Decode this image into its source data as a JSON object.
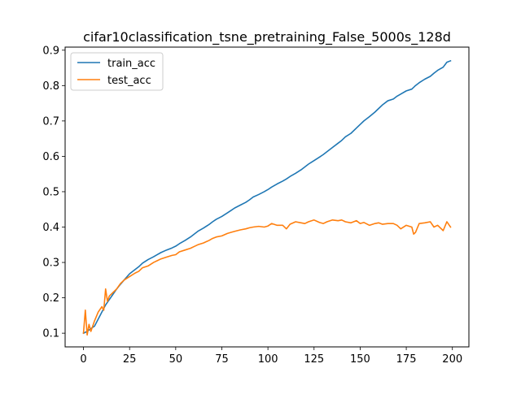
{
  "chart_data": {
    "type": "line",
    "title": "cifar10classification_tsne_pretraining_False_5000s_128d",
    "xlabel": "",
    "ylabel": "",
    "xlim": [
      -9.95,
      208.95
    ],
    "ylim": [
      0.0613,
      0.9087
    ],
    "xticks": [
      0,
      25,
      50,
      75,
      100,
      125,
      150,
      175,
      200
    ],
    "yticks": [
      0.1,
      0.2,
      0.3,
      0.4,
      0.5,
      0.6,
      0.7,
      0.8,
      0.9
    ],
    "ytick_labels": [
      "0.1",
      "0.2",
      "0.3",
      "0.4",
      "0.5",
      "0.6",
      "0.7",
      "0.8",
      "0.9"
    ],
    "grid": false,
    "legend_position": "upper-left",
    "series": [
      {
        "name": "train_acc",
        "color": "#1f77b4",
        "x": [
          0,
          2,
          4,
          6,
          8,
          10,
          12,
          14,
          16,
          18,
          20,
          22,
          25,
          28,
          30,
          32,
          35,
          38,
          40,
          42,
          45,
          48,
          50,
          52,
          55,
          58,
          60,
          62,
          65,
          68,
          70,
          72,
          75,
          78,
          80,
          82,
          85,
          88,
          90,
          92,
          95,
          98,
          100,
          102,
          105,
          108,
          110,
          112,
          115,
          118,
          120,
          122,
          125,
          128,
          130,
          132,
          135,
          138,
          140,
          142,
          145,
          148,
          150,
          152,
          155,
          158,
          160,
          162,
          165,
          168,
          170,
          172,
          175,
          178,
          180,
          182,
          185,
          188,
          190,
          192,
          195,
          197,
          199
        ],
        "y": [
          0.1,
          0.105,
          0.113,
          0.12,
          0.14,
          0.16,
          0.18,
          0.195,
          0.21,
          0.225,
          0.238,
          0.25,
          0.268,
          0.28,
          0.288,
          0.298,
          0.308,
          0.316,
          0.322,
          0.328,
          0.335,
          0.341,
          0.346,
          0.353,
          0.362,
          0.372,
          0.38,
          0.388,
          0.397,
          0.407,
          0.415,
          0.422,
          0.43,
          0.44,
          0.447,
          0.454,
          0.462,
          0.47,
          0.477,
          0.485,
          0.492,
          0.5,
          0.506,
          0.513,
          0.522,
          0.53,
          0.536,
          0.543,
          0.552,
          0.562,
          0.57,
          0.578,
          0.588,
          0.598,
          0.605,
          0.613,
          0.625,
          0.637,
          0.645,
          0.655,
          0.665,
          0.68,
          0.69,
          0.7,
          0.712,
          0.725,
          0.735,
          0.745,
          0.757,
          0.762,
          0.77,
          0.776,
          0.785,
          0.79,
          0.8,
          0.808,
          0.818,
          0.826,
          0.835,
          0.843,
          0.852,
          0.866,
          0.87
        ]
      },
      {
        "name": "test_acc",
        "color": "#ff7f0e",
        "x": [
          0,
          1,
          2,
          3,
          4,
          6,
          8,
          10,
          11,
          12,
          13,
          14,
          16,
          18,
          20,
          22,
          25,
          28,
          30,
          32,
          35,
          38,
          40,
          42,
          45,
          48,
          50,
          52,
          55,
          58,
          60,
          62,
          65,
          68,
          70,
          72,
          75,
          78,
          80,
          82,
          85,
          88,
          90,
          92,
          95,
          98,
          100,
          102,
          105,
          108,
          110,
          112,
          115,
          118,
          120,
          122,
          125,
          128,
          130,
          132,
          135,
          138,
          140,
          142,
          145,
          148,
          150,
          152,
          155,
          158,
          160,
          162,
          165,
          168,
          170,
          172,
          175,
          178,
          179,
          180,
          182,
          185,
          188,
          190,
          192,
          195,
          197,
          199
        ],
        "y": [
          0.1,
          0.165,
          0.095,
          0.125,
          0.105,
          0.135,
          0.16,
          0.175,
          0.165,
          0.225,
          0.19,
          0.205,
          0.215,
          0.225,
          0.24,
          0.25,
          0.26,
          0.27,
          0.275,
          0.285,
          0.29,
          0.3,
          0.305,
          0.31,
          0.315,
          0.32,
          0.322,
          0.33,
          0.335,
          0.34,
          0.345,
          0.35,
          0.355,
          0.362,
          0.368,
          0.372,
          0.375,
          0.382,
          0.385,
          0.388,
          0.392,
          0.395,
          0.398,
          0.4,
          0.402,
          0.4,
          0.403,
          0.41,
          0.405,
          0.405,
          0.395,
          0.408,
          0.415,
          0.412,
          0.41,
          0.415,
          0.42,
          0.413,
          0.41,
          0.415,
          0.42,
          0.418,
          0.42,
          0.415,
          0.412,
          0.418,
          0.41,
          0.413,
          0.405,
          0.41,
          0.412,
          0.408,
          0.41,
          0.41,
          0.405,
          0.395,
          0.405,
          0.4,
          0.38,
          0.385,
          0.41,
          0.412,
          0.415,
          0.4,
          0.405,
          0.39,
          0.415,
          0.4
        ]
      }
    ]
  }
}
